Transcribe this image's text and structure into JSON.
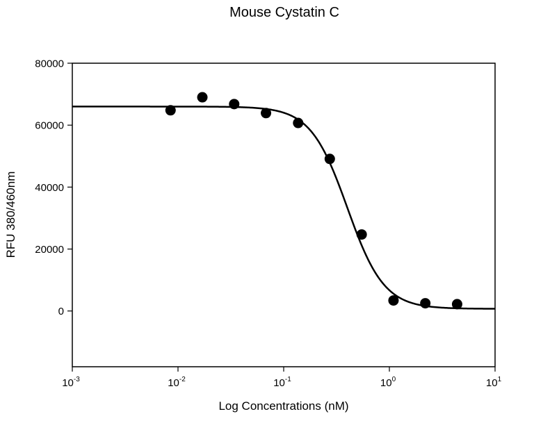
{
  "chart_data": {
    "type": "scatter",
    "title": "Mouse Cystatin C",
    "xlabel": "Log Concentrations (nM)",
    "ylabel": "RFU 380/460nm",
    "x_scale": "log",
    "xlim": [
      0.001,
      10
    ],
    "ylim": [
      -18000,
      80000
    ],
    "x_ticks": [
      {
        "base": "10",
        "exp": "-3",
        "value": 0.001
      },
      {
        "base": "10",
        "exp": "-2",
        "value": 0.01
      },
      {
        "base": "10",
        "exp": "-1",
        "value": 0.1
      },
      {
        "base": "10",
        "exp": "0",
        "value": 1
      },
      {
        "base": "10",
        "exp": "1",
        "value": 10
      }
    ],
    "y_ticks": [
      "0",
      "20000",
      "40000",
      "60000",
      "80000"
    ],
    "grid": false,
    "series": [
      {
        "x": [
          0.0085,
          0.017,
          0.034,
          0.068,
          0.137,
          0.273,
          0.547,
          1.094,
          2.188,
          4.375
        ],
        "y": [
          64800,
          69000,
          66800,
          63900,
          60700,
          49100,
          24700,
          3400,
          2500,
          2200
        ],
        "marker": "filled-circle",
        "color": "#000000"
      }
    ],
    "fit_curve": {
      "model": "4-parameter logistic",
      "top": 66000,
      "bottom": 700,
      "ic50": 0.4,
      "hill": 2.5,
      "color": "#000000"
    }
  }
}
